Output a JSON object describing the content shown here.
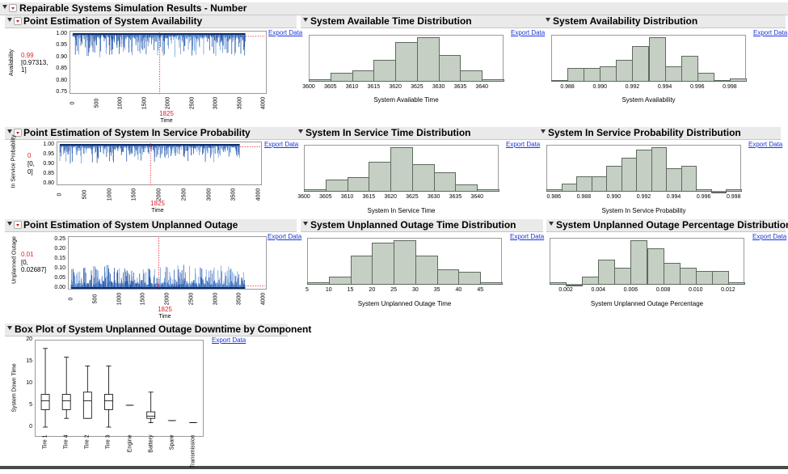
{
  "title": "Repairable Systems Simulation Results - Number",
  "export_label": "Export Data",
  "row1": {
    "point": {
      "title": "Point Estimation of System Availability",
      "ylabel": "Availability",
      "estimate": "0.99",
      "ci": "[0.97313,",
      "ci2": "1]",
      "marker": "1825",
      "xlabel": "Time",
      "yticks": [
        "1.00",
        "0.95",
        "0.90",
        "0.85",
        "0.80",
        "0.75"
      ],
      "xticks": [
        "0",
        "500",
        "1000",
        "1500",
        "2000",
        "2500",
        "3000",
        "3500",
        "4000"
      ]
    },
    "dist1": {
      "title": "System Available Time Distribution",
      "xlabel": "System Available Time",
      "xticks": [
        "3600",
        "3605",
        "3610",
        "3615",
        "3620",
        "3625",
        "3630",
        "3635",
        "3640"
      ]
    },
    "dist2": {
      "title": "System Availability Distribution",
      "xlabel": "System Availability",
      "xticks": [
        "0.988",
        "0.990",
        "0.992",
        "0.994",
        "0.996",
        "0.998"
      ]
    }
  },
  "row2": {
    "point": {
      "title": "Point Estimation of System In Service Probability",
      "ylabel": "In Service Probability",
      "estimate": "0",
      "ci": "[0,",
      "ci2": "0]",
      "marker": "1825",
      "xlabel": "Time",
      "yticks": [
        "1.00",
        "0.95",
        "0.90",
        "0.85",
        "0.80"
      ],
      "xticks": [
        "0",
        "500",
        "1000",
        "1500",
        "2000",
        "2500",
        "3000",
        "3500",
        "4000"
      ]
    },
    "dist1": {
      "title": "System In Service Time Distribution",
      "xlabel": "System In Service Time",
      "xticks": [
        "3600",
        "3605",
        "3610",
        "3615",
        "3620",
        "3625",
        "3630",
        "3635",
        "3640"
      ]
    },
    "dist2": {
      "title": "System In Service Probability Distribution",
      "xlabel": "System In Service Probability",
      "xticks": [
        "0.986",
        "0.988",
        "0.990",
        "0.992",
        "0.994",
        "0.996",
        "0.998"
      ]
    }
  },
  "row3": {
    "point": {
      "title": "Point Estimation of System Unplanned Outage",
      "ylabel": "Unplanned Outage",
      "estimate": "0.01",
      "ci": "[0,",
      "ci2": "0.02687]",
      "marker": "1825",
      "xlabel": "Time",
      "yticks": [
        "0.25",
        "0.20",
        "0.15",
        "0.10",
        "0.05",
        "0.00"
      ],
      "xticks": [
        "0",
        "500",
        "1000",
        "1500",
        "2000",
        "2500",
        "3000",
        "3500",
        "4000"
      ]
    },
    "dist1": {
      "title": "System Unplanned Outage Time Distribution",
      "xlabel": "System Unplanned Outage Time",
      "xticks": [
        "5",
        "10",
        "15",
        "20",
        "25",
        "30",
        "35",
        "40",
        "45"
      ]
    },
    "dist2": {
      "title": "System Unplanned Outage Percentage Distribution",
      "xlabel": "System Unplanned Outage Percentage",
      "xticks": [
        "0.002",
        "0.004",
        "0.006",
        "0.008",
        "0.010",
        "0.012"
      ]
    }
  },
  "box": {
    "title": "Box Plot of System Unplanned Outage Downtime by Component",
    "ylabel": "System Down Time",
    "yticks": [
      "20",
      "15",
      "10",
      "5",
      "0"
    ]
  },
  "chart_data": [
    {
      "type": "histogram",
      "title": "System Available Time Distribution",
      "xlabel": "System Available Time",
      "bins": [
        3600,
        3605,
        3610,
        3615,
        3620,
        3625,
        3630,
        3635,
        3640,
        3645
      ],
      "values": [
        1,
        4,
        5,
        10,
        18,
        20,
        12,
        5,
        1
      ]
    },
    {
      "type": "histogram",
      "title": "System Availability Distribution",
      "xlabel": "System Availability",
      "bins": [
        0.987,
        0.988,
        0.989,
        0.99,
        0.991,
        0.992,
        0.993,
        0.994,
        0.995,
        0.996,
        0.997,
        0.998,
        0.999
      ],
      "values": [
        1,
        8,
        8,
        9,
        13,
        21,
        26,
        9,
        15,
        5,
        1,
        2
      ]
    },
    {
      "type": "histogram",
      "title": "System In Service Time Distribution",
      "xlabel": "System In Service Time",
      "bins": [
        3600,
        3605,
        3610,
        3615,
        3620,
        3625,
        3630,
        3635,
        3640,
        3645
      ],
      "values": [
        1,
        5,
        6,
        12,
        18,
        11,
        8,
        3,
        1
      ]
    },
    {
      "type": "histogram",
      "title": "System In Service Probability Distribution",
      "xlabel": "System In Service Probability",
      "bins": [
        0.9855,
        0.9865,
        0.9875,
        0.9885,
        0.9895,
        0.9905,
        0.9915,
        0.9925,
        0.9935,
        0.9945,
        0.9955,
        0.9965,
        0.9975,
        0.9985
      ],
      "values": [
        1,
        3,
        6,
        6,
        10,
        13,
        16,
        17,
        9,
        10,
        1,
        0,
        1
      ]
    },
    {
      "type": "histogram",
      "title": "System Unplanned Outage Time Distribution",
      "xlabel": "System Unplanned Outage Time",
      "bins": [
        5,
        10,
        15,
        20,
        25,
        30,
        35,
        40,
        45,
        50
      ],
      "values": [
        1,
        3,
        11,
        16,
        17,
        11,
        6,
        5,
        1
      ]
    },
    {
      "type": "histogram",
      "title": "System Unplanned Outage Percentage Distribution",
      "xlabel": "System Unplanned Outage Percentage",
      "bins": [
        0.001,
        0.002,
        0.003,
        0.004,
        0.005,
        0.006,
        0.007,
        0.008,
        0.009,
        0.01,
        0.011,
        0.012,
        0.013
      ],
      "values": [
        1,
        0,
        3,
        9,
        6,
        16,
        13,
        8,
        6,
        5,
        5,
        1
      ]
    },
    {
      "type": "box",
      "title": "Box Plot of System Unplanned Outage Downtime by Component",
      "ylabel": "System Down Time",
      "ylim": [
        0,
        20
      ],
      "categories": [
        "Tire 1",
        "Tire 4",
        "Tire 2",
        "Tire 3",
        "Engine",
        "Battery",
        "Spare",
        "Transmission"
      ],
      "boxes": [
        {
          "min": 0,
          "q1": 4,
          "median": 6,
          "q3": 7.5,
          "max": 18
        },
        {
          "min": 2,
          "q1": 4,
          "median": 6,
          "q3": 7.5,
          "max": 16
        },
        {
          "min": 2,
          "q1": 2,
          "median": 6,
          "q3": 8,
          "max": 14
        },
        {
          "min": 0,
          "q1": 4,
          "median": 6,
          "q3": 7.5,
          "max": 14
        },
        {
          "min": 5,
          "q1": 5,
          "median": 5,
          "q3": 5,
          "max": 5
        },
        {
          "min": 1,
          "q1": 2,
          "median": 2.5,
          "q3": 3.5,
          "max": 8
        },
        {
          "min": 1.5,
          "q1": 1.5,
          "median": 1.5,
          "q3": 1.5,
          "max": 1.5
        },
        {
          "min": 1,
          "q1": 1,
          "median": 1,
          "q3": 1,
          "max": 1
        }
      ]
    }
  ]
}
